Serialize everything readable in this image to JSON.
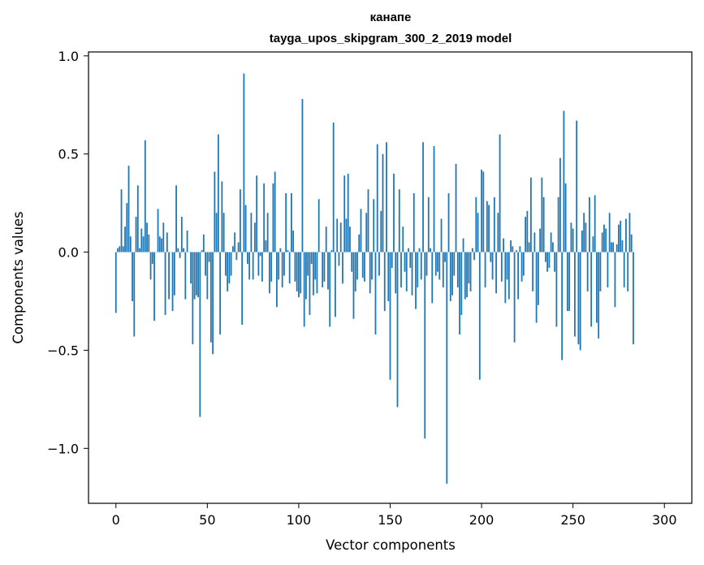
{
  "chart_data": {
    "type": "bar",
    "title": "канапе",
    "subtitle": "tayga_upos_skipgram_300_2_2019 model",
    "xlabel": "Vector components",
    "ylabel": "Components values",
    "xlim": [
      -15,
      315
    ],
    "ylim": [
      -1.28,
      1.02
    ],
    "xticks": [
      0,
      50,
      100,
      150,
      200,
      250,
      300
    ],
    "xtick_labels": [
      "0",
      "50",
      "100",
      "150",
      "200",
      "250",
      "300"
    ],
    "yticks": [
      -1.0,
      -0.5,
      0.0,
      0.5,
      1.0
    ],
    "ytick_labels": [
      "−1.0",
      "−0.5",
      "0.0",
      "0.5",
      "1.0"
    ],
    "bar_color": "#1f77b4",
    "values": [
      -0.31,
      0.02,
      0.03,
      0.32,
      0.03,
      0.13,
      0.25,
      0.44,
      0.08,
      -0.25,
      -0.43,
      0.18,
      0.34,
      0.02,
      0.12,
      0.08,
      0.57,
      0.15,
      0.09,
      -0.14,
      -0.06,
      -0.35,
      0.0,
      0.22,
      0.08,
      0.07,
      0.15,
      -0.32,
      0.1,
      -0.24,
      0.0,
      -0.3,
      -0.22,
      0.34,
      0.02,
      -0.03,
      0.18,
      0.02,
      -0.24,
      0.11,
      0.0,
      -0.16,
      -0.47,
      -0.24,
      -0.22,
      -0.23,
      -0.84,
      0.01,
      0.09,
      -0.12,
      -0.24,
      -0.05,
      -0.46,
      -0.52,
      0.41,
      0.2,
      0.6,
      -0.42,
      0.36,
      0.2,
      -0.12,
      -0.2,
      -0.16,
      -0.12,
      0.03,
      0.1,
      -0.04,
      0.05,
      0.32,
      -0.37,
      0.91,
      0.24,
      -0.06,
      -0.14,
      0.2,
      -0.14,
      0.15,
      0.39,
      -0.12,
      -0.02,
      -0.15,
      0.35,
      0.06,
      0.2,
      -0.21,
      -0.15,
      0.35,
      0.41,
      -0.28,
      -0.14,
      0.02,
      -0.18,
      -0.12,
      0.3,
      0.01,
      -0.16,
      0.3,
      0.11,
      -0.15,
      -0.2,
      -0.23,
      -0.21,
      0.78,
      -0.38,
      -0.24,
      -0.12,
      -0.32,
      -0.06,
      -0.22,
      -0.14,
      -0.21,
      0.27,
      0.0,
      -0.18,
      -0.15,
      0.13,
      -0.19,
      -0.38,
      0.01,
      0.66,
      -0.33,
      0.17,
      -0.07,
      0.15,
      -0.16,
      0.39,
      0.17,
      0.4,
      0.13,
      -0.1,
      -0.34,
      -0.2,
      -0.14,
      0.09,
      0.22,
      -0.13,
      -0.15,
      0.2,
      0.32,
      -0.21,
      -0.14,
      0.27,
      -0.42,
      0.55,
      -0.12,
      0.21,
      0.5,
      -0.3,
      0.56,
      -0.25,
      -0.65,
      -0.08,
      0.4,
      -0.21,
      -0.79,
      0.32,
      -0.18,
      0.13,
      -0.1,
      -0.2,
      0.02,
      -0.08,
      -0.22,
      0.3,
      -0.29,
      -0.18,
      0.02,
      -0.14,
      0.56,
      -0.95,
      -0.12,
      0.28,
      0.02,
      -0.26,
      0.54,
      -0.12,
      -0.1,
      -0.14,
      0.17,
      -0.18,
      -0.05,
      -1.18,
      0.3,
      -0.25,
      -0.22,
      -0.12,
      0.45,
      -0.18,
      -0.42,
      -0.32,
      0.07,
      -0.24,
      -0.23,
      -0.16,
      -0.2,
      0.02,
      -0.04,
      0.28,
      0.2,
      -0.65,
      0.42,
      0.41,
      -0.18,
      0.26,
      0.24,
      -0.05,
      -0.14,
      0.28,
      -0.21,
      0.2,
      0.6,
      -0.15,
      0.07,
      -0.26,
      -0.14,
      -0.24,
      0.06,
      0.03,
      -0.46,
      0.01,
      -0.24,
      0.03,
      -0.15,
      -0.12,
      0.18,
      0.21,
      0.05,
      0.38,
      -0.2,
      0.1,
      -0.36,
      -0.27,
      0.12,
      0.38,
      0.28,
      -0.05,
      -0.1,
      -0.08,
      0.1,
      0.05,
      -0.1,
      -0.38,
      0.28,
      0.48,
      -0.55,
      0.72,
      0.35,
      -0.3,
      -0.3,
      0.15,
      0.12,
      -0.43,
      0.67,
      -0.47,
      -0.5,
      0.11,
      0.2,
      0.15,
      -0.2,
      0.28,
      -0.38,
      0.08,
      0.29,
      -0.36,
      -0.44,
      -0.2,
      0.1,
      0.14,
      0.12,
      -0.18,
      0.2,
      0.05,
      0.05,
      -0.28,
      0.04,
      0.14,
      0.16,
      0.06,
      -0.18,
      0.17,
      -0.2,
      0.2,
      0.09,
      -0.47
    ]
  }
}
